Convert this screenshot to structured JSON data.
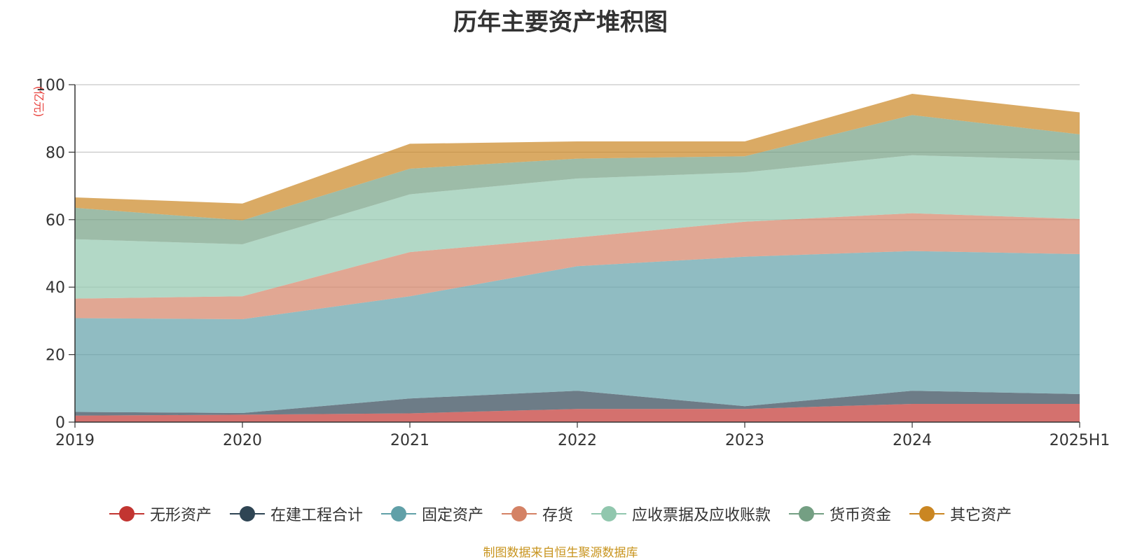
{
  "chart_data": {
    "type": "area",
    "stacked": true,
    "title": "历年主要资产堆积图",
    "unit": "(亿元)",
    "x": [
      "2019",
      "2020",
      "2021",
      "2022",
      "2023",
      "2024",
      "2025H1"
    ],
    "yticks": [
      "0",
      "20",
      "40",
      "60",
      "80",
      "100"
    ],
    "ylim": [
      0,
      100
    ],
    "grid": true,
    "legend_position": "bottom",
    "series": [
      {
        "name": "无形资产",
        "color": "#c23531",
        "values": [
          1.9,
          2.2,
          2.6,
          3.9,
          3.9,
          5.4,
          5.4
        ]
      },
      {
        "name": "在建工程合计",
        "color": "#2f4554",
        "values": [
          1.1,
          0.5,
          4.4,
          5.4,
          0.8,
          3.9,
          2.9
        ]
      },
      {
        "name": "固定资产",
        "color": "#61a0a8",
        "values": [
          27.8,
          27.8,
          30.3,
          36.9,
          44.3,
          41.4,
          41.5
        ]
      },
      {
        "name": "存货",
        "color": "#d48265",
        "values": [
          5.8,
          6.8,
          13.1,
          8.5,
          10.4,
          11.2,
          10.4
        ]
      },
      {
        "name": "应收票据及应收账款",
        "color": "#91c7ae",
        "values": [
          17.6,
          15.4,
          17.1,
          17.5,
          14.6,
          17.2,
          17.4
        ]
      },
      {
        "name": "货币资金",
        "color": "#749f83",
        "values": [
          9.3,
          7.1,
          7.6,
          5.9,
          4.8,
          11.9,
          7.7
        ]
      },
      {
        "name": "其它资产",
        "color": "#ca8622",
        "values": [
          3.1,
          5.0,
          7.4,
          5.1,
          4.4,
          6.3,
          6.5
        ]
      }
    ],
    "source": "制图数据来自恒生聚源数据库"
  }
}
